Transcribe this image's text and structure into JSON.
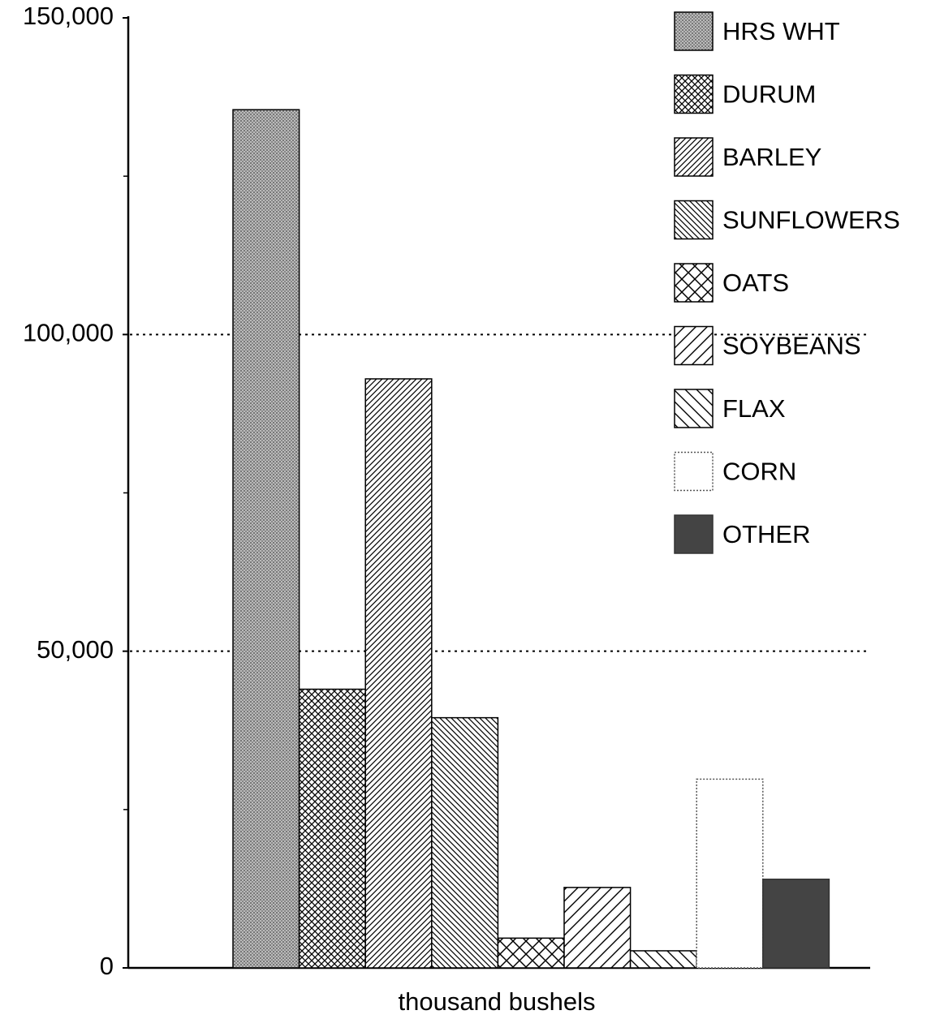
{
  "chart_data": {
    "type": "bar",
    "x_label": "thousand bushels",
    "categories": [
      "HRS WHT",
      "DURUM",
      "BARLEY",
      "SUNFLOWERS",
      "OATS",
      "SOYBEANS",
      "FLAX",
      "CORN",
      "OTHER"
    ],
    "values": [
      135500,
      44000,
      93000,
      39500,
      4700,
      12700,
      2700,
      29800,
      14000
    ],
    "patterns": [
      "stipple",
      "crosshatch",
      "hatch-right",
      "hatch-left",
      "crosshatch-wide",
      "hatch-right-wide",
      "hatch-left-wide",
      "blank",
      "solid-dark"
    ],
    "ylim": [
      0,
      150000
    ],
    "yticks": [
      0,
      {
        "value": 50000,
        "label": "50,000"
      },
      {
        "value": 100000,
        "label": "100,000"
      },
      {
        "value": 150000,
        "label": "150,000"
      }
    ],
    "minor_yticks": [
      25000,
      75000,
      125000
    ],
    "grid": true,
    "legend": "top-right"
  }
}
